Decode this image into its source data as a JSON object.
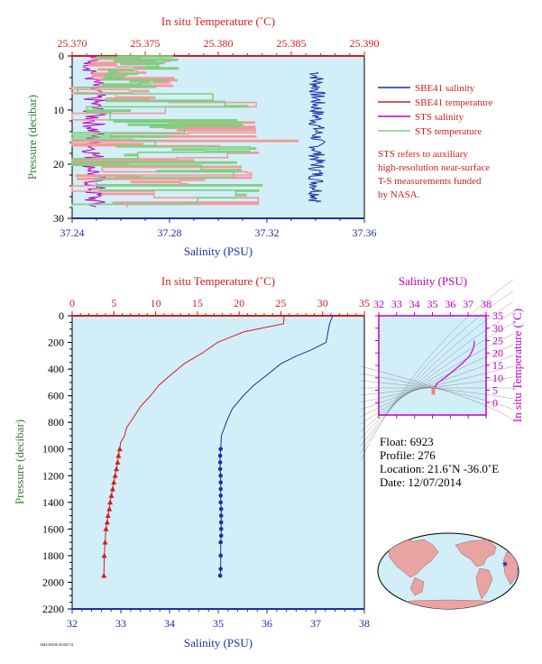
{
  "colors": {
    "plot_bg": "#d2eef8",
    "red": "#d21e1e",
    "blue": "#1a2fa8",
    "magenta": "#c000c0",
    "green": "#2e7d32",
    "sts_temp": "#f29a9a",
    "sts_green": "#7fcf7f"
  },
  "chart_data": [
    {
      "id": "top",
      "type": "line",
      "title_top_axis": "In situ Temperature (˚C)",
      "xlabel": "Salinity (PSU)",
      "ylabel": "Pressure (decibar)",
      "top_axis": {
        "min": 25.37,
        "max": 25.39,
        "ticks": [
          "25.370",
          "25.375",
          "25.380",
          "25.385",
          "25.390"
        ]
      },
      "bottom_axis": {
        "min": 37.24,
        "max": 37.36,
        "ticks": [
          "37.24",
          "37.28",
          "37.32",
          "37.36"
        ]
      },
      "y_axis": {
        "min": 0,
        "max": 30,
        "ticks": [
          "0",
          "10",
          "20",
          "30"
        ]
      },
      "legend": {
        "items": [
          {
            "label": "SBE41 salinity",
            "color": "#1a2fa8"
          },
          {
            "label": "SBE41 temperature",
            "color": "#d21e1e"
          },
          {
            "label": "STS salinity",
            "color": "#c000c0"
          },
          {
            "label": "STS temperature",
            "color": "#7fcf7f"
          }
        ],
        "note": [
          "STS refers to auxiliary",
          "high-resolution near-surface",
          "T-S measurements funded",
          "by NASA."
        ]
      },
      "series": [
        {
          "name": "SBE41 salinity",
          "axis": "bottom",
          "color": "#1a2fa8",
          "range_x": [
            37.337,
            37.344
          ],
          "range_p": [
            3,
            27
          ]
        },
        {
          "name": "STS salinity",
          "axis": "bottom",
          "color": "#c000c0",
          "range_x": [
            37.244,
            37.254
          ],
          "range_p": [
            0,
            28
          ]
        },
        {
          "name": "STS temperature",
          "axis": "top",
          "color": "#f29a9a",
          "range_x": [
            25.37,
            25.386
          ],
          "range_p": [
            0,
            28
          ]
        },
        {
          "name": "STS temperature",
          "axis": "top",
          "color": "#7fcf7f",
          "range_x": [
            25.371,
            25.385
          ],
          "range_p": [
            0,
            28
          ]
        }
      ]
    },
    {
      "id": "main",
      "type": "line",
      "title_top_axis": "In situ Temperature (˚C)",
      "xlabel": "Salinity (PSU)",
      "ylabel": "Pressure (decibar)",
      "top_axis": {
        "min": 0,
        "max": 35,
        "ticks": [
          "0",
          "5",
          "10",
          "15",
          "20",
          "25",
          "30",
          "35"
        ]
      },
      "bottom_axis": {
        "min": 32,
        "max": 38,
        "ticks": [
          "32",
          "33",
          "34",
          "35",
          "36",
          "37",
          "38"
        ]
      },
      "y_axis": {
        "min": 0,
        "max": 2200,
        "ticks": [
          "0",
          "200",
          "400",
          "600",
          "800",
          "1000",
          "1200",
          "1400",
          "1600",
          "1800",
          "2000",
          "2200"
        ]
      },
      "series": [
        {
          "name": "temperature",
          "axis": "top",
          "color": "#d21e1e",
          "marker": "triangle",
          "x": [
            25.4,
            25.4,
            20.5,
            17.5,
            15.5,
            13.5,
            11.8,
            10.5,
            9.3,
            8.3,
            7.3,
            6.6,
            6.2,
            5.9,
            5.7,
            5.55,
            5.45,
            5.3,
            5.15,
            5.0,
            4.85,
            4.7,
            4.55,
            4.45,
            4.3,
            4.2,
            4.05,
            3.95,
            3.85,
            3.8
          ],
          "y": [
            0,
            60,
            120,
            200,
            280,
            360,
            440,
            520,
            600,
            680,
            760,
            840,
            900,
            950,
            1000,
            1050,
            1100,
            1150,
            1200,
            1250,
            1300,
            1350,
            1400,
            1450,
            1500,
            1550,
            1600,
            1700,
            1800,
            1950
          ]
        },
        {
          "name": "salinity",
          "axis": "bottom",
          "color": "#1a2fa8",
          "marker": "circle",
          "x": [
            37.35,
            37.3,
            37.2,
            36.9,
            36.6,
            36.3,
            36.0,
            35.75,
            35.5,
            35.3,
            35.15,
            35.08,
            35.05,
            35.04,
            35.04,
            35.04,
            35.05,
            35.05,
            35.05,
            35.05,
            35.05,
            35.06,
            35.06,
            35.06,
            35.06,
            35.06,
            35.05,
            35.05,
            35.05,
            35.04
          ],
          "y": [
            0,
            60,
            200,
            260,
            300,
            360,
            440,
            520,
            600,
            700,
            800,
            900,
            1000,
            1050,
            1100,
            1150,
            1200,
            1250,
            1300,
            1350,
            1400,
            1450,
            1500,
            1550,
            1600,
            1650,
            1700,
            1800,
            1900,
            1950
          ]
        }
      ]
    },
    {
      "id": "ts",
      "type": "line",
      "title_top_axis": "Salinity (PSU)",
      "ylabel": "In situ Temperature (˚C)",
      "x_axis": {
        "min": 32,
        "max": 38,
        "ticks": [
          "32",
          "33",
          "34",
          "35",
          "36",
          "37",
          "38"
        ]
      },
      "y_axis": {
        "min": -5,
        "max": 35,
        "ticks": [
          "0",
          "5",
          "10",
          "15",
          "20",
          "25",
          "30",
          "35"
        ]
      },
      "series": [
        {
          "name": "salinity-temperature",
          "color": "#d000d0",
          "x": [
            35.05,
            35.1,
            35.3,
            35.7,
            36.2,
            36.7,
            37.1,
            37.3,
            37.35
          ],
          "y": [
            4,
            6,
            8,
            10,
            13,
            16,
            19,
            22,
            25
          ]
        }
      ]
    }
  ],
  "info": {
    "float": "Float:  6923",
    "profile": "Profile:  276",
    "location": "Location:  21.6˚N  -36.0˚E",
    "date": "Date:  12/07/2014"
  },
  "footer_id": "AM4-69236-20160714"
}
